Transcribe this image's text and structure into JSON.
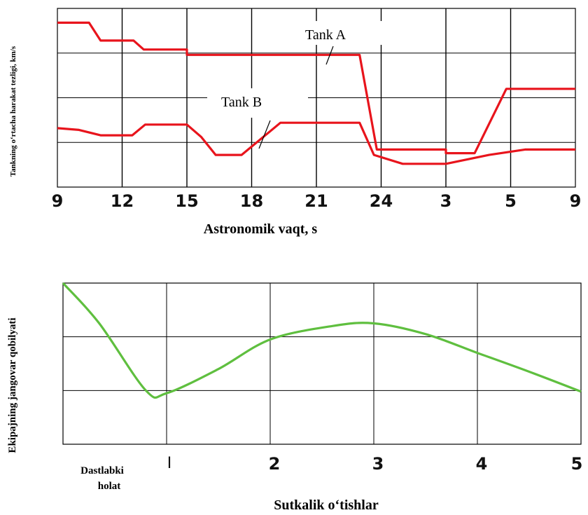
{
  "chart_data": [
    {
      "type": "line",
      "xlabel": "Astronomik vaqt, s",
      "ylabel": "Tankning o‘rtacha harakat tezligi, km/s",
      "x_ticks": [
        "9",
        "12",
        "15",
        "18",
        "21",
        "24",
        "3",
        "5",
        "9"
      ],
      "grid": true,
      "series": [
        {
          "name": "Tank A",
          "color": "#e8141c",
          "x": [
            0,
            2.2,
            3.0,
            5.3,
            6.0,
            9.0,
            9.0,
            15.0,
            15.0,
            21.0,
            22.2,
            27.0,
            27.0,
            29.0,
            31.2,
            32.7,
            36.0
          ],
          "y": [
            9.2,
            9.2,
            8.2,
            8.2,
            7.7,
            7.7,
            7.4,
            7.4,
            7.4,
            7.4,
            2.1,
            2.1,
            1.9,
            1.9,
            5.5,
            5.5,
            5.5
          ]
        },
        {
          "name": "Tank B",
          "color": "#e8141c",
          "x": [
            0,
            1.5,
            3.0,
            5.2,
            6.1,
            8.0,
            9.0,
            10.0,
            11.0,
            12.0,
            12.8,
            15.5,
            16.0,
            21.0,
            22.0,
            24.0,
            27.0,
            30.0,
            32.5,
            36.0
          ],
          "y": [
            3.3,
            3.2,
            2.9,
            2.9,
            3.5,
            3.5,
            3.5,
            2.8,
            1.8,
            1.8,
            1.8,
            3.6,
            3.6,
            3.6,
            1.8,
            1.3,
            1.3,
            1.8,
            2.1,
            2.1
          ]
        }
      ]
    },
    {
      "type": "line",
      "xlabel": "Sutkalik o‘tishlar",
      "ylabel": "Ekipajning jangovar qobilyati",
      "x_ticks": [
        "Dastlabki\nholat",
        "I",
        "2",
        "3",
        "4",
        "5"
      ],
      "grid": true,
      "series": [
        {
          "color": "#5fbf3f",
          "x": [
            0,
            0.35,
            0.8,
            1.0,
            1.5,
            2.0,
            2.6,
            3.0,
            3.5,
            4.0,
            4.5,
            5.0
          ],
          "y": [
            3.0,
            2.25,
            1.0,
            0.95,
            1.4,
            1.95,
            2.2,
            2.25,
            2.05,
            1.7,
            1.35,
            0.98
          ]
        }
      ]
    }
  ],
  "annotations": {
    "tank_a": "Tank A",
    "tank_b": "Tank B"
  },
  "labels": {
    "top_xlabel": "Astronomik vaqt, s",
    "top_ylabel": "Tankning o‘rtacha harakat tezligi, km/s",
    "bottom_xlabel": "Sutkalik o‘tishlar",
    "bottom_ylabel": "Ekipajning jangovar qobilyati",
    "bottom_start_line1": "Dastlabki",
    "bottom_start_line2": "holat",
    "bottom_first_tick": "I"
  }
}
